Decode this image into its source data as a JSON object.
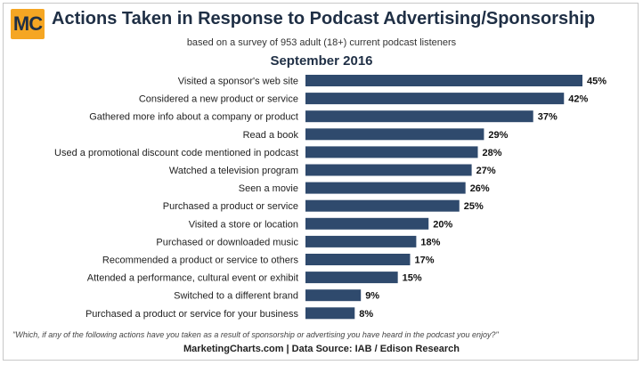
{
  "header": {
    "logo_text": "MC",
    "title": "Actions Taken in Response to Podcast Advertising/Sponsorship",
    "subtitle": "based on a survey of 953 adult (18+) current podcast listeners",
    "period": "September 2016"
  },
  "footer": {
    "question": "\"Which, if any of the following actions have you taken as a result of sponsorship or advertising you have heard in the podcast you enjoy?\"",
    "source": "MarketingCharts.com | Data Source: IAB / Edison Research"
  },
  "colors": {
    "bar": "#2f4a6d",
    "title": "#1f2f45",
    "logo": "#f5a623"
  },
  "chart_data": {
    "type": "bar",
    "orientation": "horizontal",
    "categories": [
      "Visited a sponsor's web site",
      "Considered a new product or service",
      "Gathered more info about a company or product",
      "Read a book",
      "Used a promotional discount code mentioned in podcast",
      "Watched a television program",
      "Seen a movie",
      "Purchased a product or service",
      "Visited a store or location",
      "Purchased or downloaded music",
      "Recommended a product or service to others",
      "Attended a performance, cultural event or exhibit",
      "Switched to a different brand",
      "Purchased a product or service for your business"
    ],
    "values": [
      45,
      42,
      37,
      29,
      28,
      27,
      26,
      25,
      20,
      18,
      17,
      15,
      9,
      8
    ],
    "value_labels": [
      "45%",
      "42%",
      "37%",
      "29%",
      "28%",
      "27%",
      "26%",
      "25%",
      "20%",
      "18%",
      "17%",
      "15%",
      "9%",
      "8%"
    ],
    "unit": "%",
    "xlim": [
      0,
      45
    ],
    "grid": false,
    "legend": "none"
  }
}
